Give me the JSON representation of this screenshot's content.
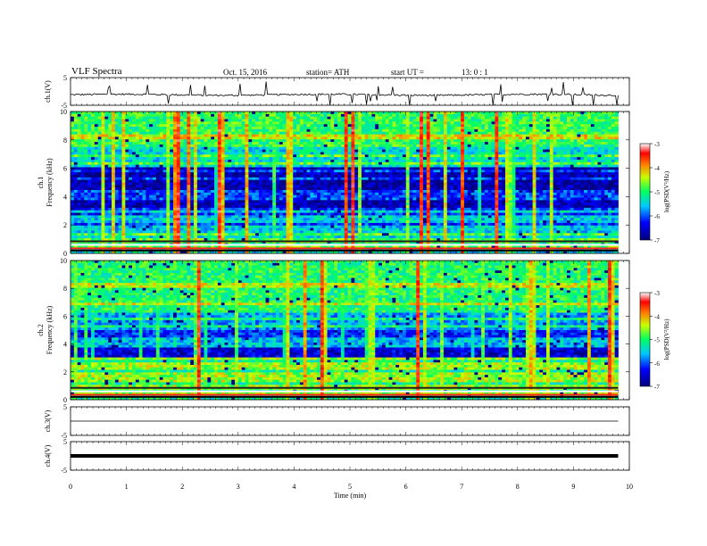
{
  "header": {
    "title": "VLF  Spectra",
    "date": "Oct. 15, 2016",
    "station": "station= ATH",
    "start_label": "start  UT  =",
    "start_value": "13: 0  : 1"
  },
  "chart_data": [
    {
      "type": "line",
      "panel": "ch1-waveform",
      "ylabel": "ch.1(V)",
      "ylim": [
        -5,
        5
      ],
      "yticks": [
        "5",
        "-5"
      ],
      "series": [
        {
          "values_description_only": false,
          "level": -1.2,
          "noise": 0.6
        }
      ],
      "color": "#000000"
    },
    {
      "type": "heatmap",
      "panel": "ch1-spectrogram",
      "ylabel_line1": "ch.1",
      "ylabel_line2": "Frequency  (kHz)",
      "ylim": [
        0,
        10
      ],
      "yticks": [
        "0",
        "2",
        "4",
        "6",
        "8",
        "10"
      ],
      "colorbar": {
        "label": "log(PSD(V²/Hz)",
        "ticks": [
          "-3",
          "-4",
          "-5",
          "-6",
          "-7"
        ],
        "range": [
          -7,
          -3
        ]
      }
    },
    {
      "type": "heatmap",
      "panel": "ch2-spectrogram",
      "ylabel_line1": "ch.2",
      "ylabel_line2": "Frequency  (kHz)",
      "ylim": [
        0,
        10
      ],
      "yticks": [
        "0",
        "2",
        "4",
        "6",
        "8",
        "10"
      ],
      "colorbar": {
        "label": "log(PSD(V²/Hz)",
        "ticks": [
          "-3",
          "-4",
          "-5",
          "-6",
          "-7"
        ],
        "range": [
          -7,
          -3
        ]
      }
    },
    {
      "type": "line",
      "panel": "ch3-waveform",
      "ylabel": "ch.3(V)",
      "ylim": [
        -5,
        5
      ],
      "yticks": [
        "5",
        "-5"
      ],
      "series": [
        {
          "level": 0
        }
      ],
      "color": "#000000"
    },
    {
      "type": "line",
      "panel": "ch4-waveform",
      "ylabel": "ch.4(V)",
      "ylim": [
        -5,
        5
      ],
      "yticks": [
        "5",
        "-5"
      ],
      "series": [
        {
          "level": 0
        }
      ],
      "color": "#000000"
    }
  ],
  "x_axis": {
    "label": "Time  (min)",
    "ticks": [
      "0",
      "1",
      "2",
      "3",
      "4",
      "5",
      "6",
      "7",
      "8",
      "9",
      "10"
    ],
    "xlim": [
      0,
      10
    ],
    "data_end": 9.8
  }
}
